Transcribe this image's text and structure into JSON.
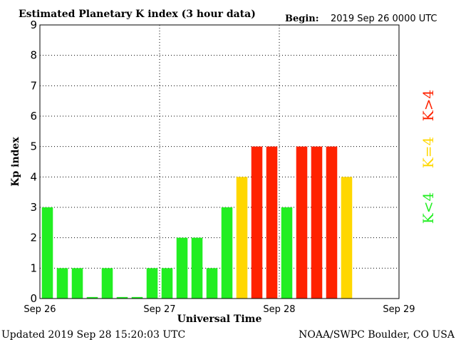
{
  "header": {
    "title": "Estimated Planetary K index (3 hour data)",
    "begin_label": "Begin:",
    "begin_value": "2019 Sep 26 0000 UTC"
  },
  "footer": {
    "updated": "Updated 2019 Sep 28 15:20:03 UTC",
    "source": "NOAA/SWPC Boulder, CO USA"
  },
  "legend": {
    "low": {
      "label": "K<4",
      "color": "#22ee22"
    },
    "mid": {
      "label": "K=4",
      "color": "#ffd700"
    },
    "high": {
      "label": "K>4",
      "color": "#ff2200"
    }
  },
  "chart_data": {
    "type": "bar",
    "title": "Estimated Planetary K index (3 hour data)",
    "xlabel": "Universal Time",
    "ylabel": "Kp index",
    "ylim": [
      0,
      9
    ],
    "yticks": [
      0,
      1,
      2,
      3,
      4,
      5,
      6,
      7,
      8,
      9
    ],
    "xtick_labels": [
      "Sep 26",
      "Sep 27",
      "Sep 28",
      "Sep 29"
    ],
    "grid": true,
    "interval_hours": 3,
    "values": [
      3,
      1,
      1,
      0.05,
      1,
      0.05,
      0.05,
      1,
      1,
      2,
      2,
      1,
      3,
      4,
      5,
      5,
      3,
      5,
      5,
      5,
      4
    ],
    "colors": {
      "low": "#22ee22",
      "mid": "#ffd700",
      "high": "#ff2200"
    }
  }
}
